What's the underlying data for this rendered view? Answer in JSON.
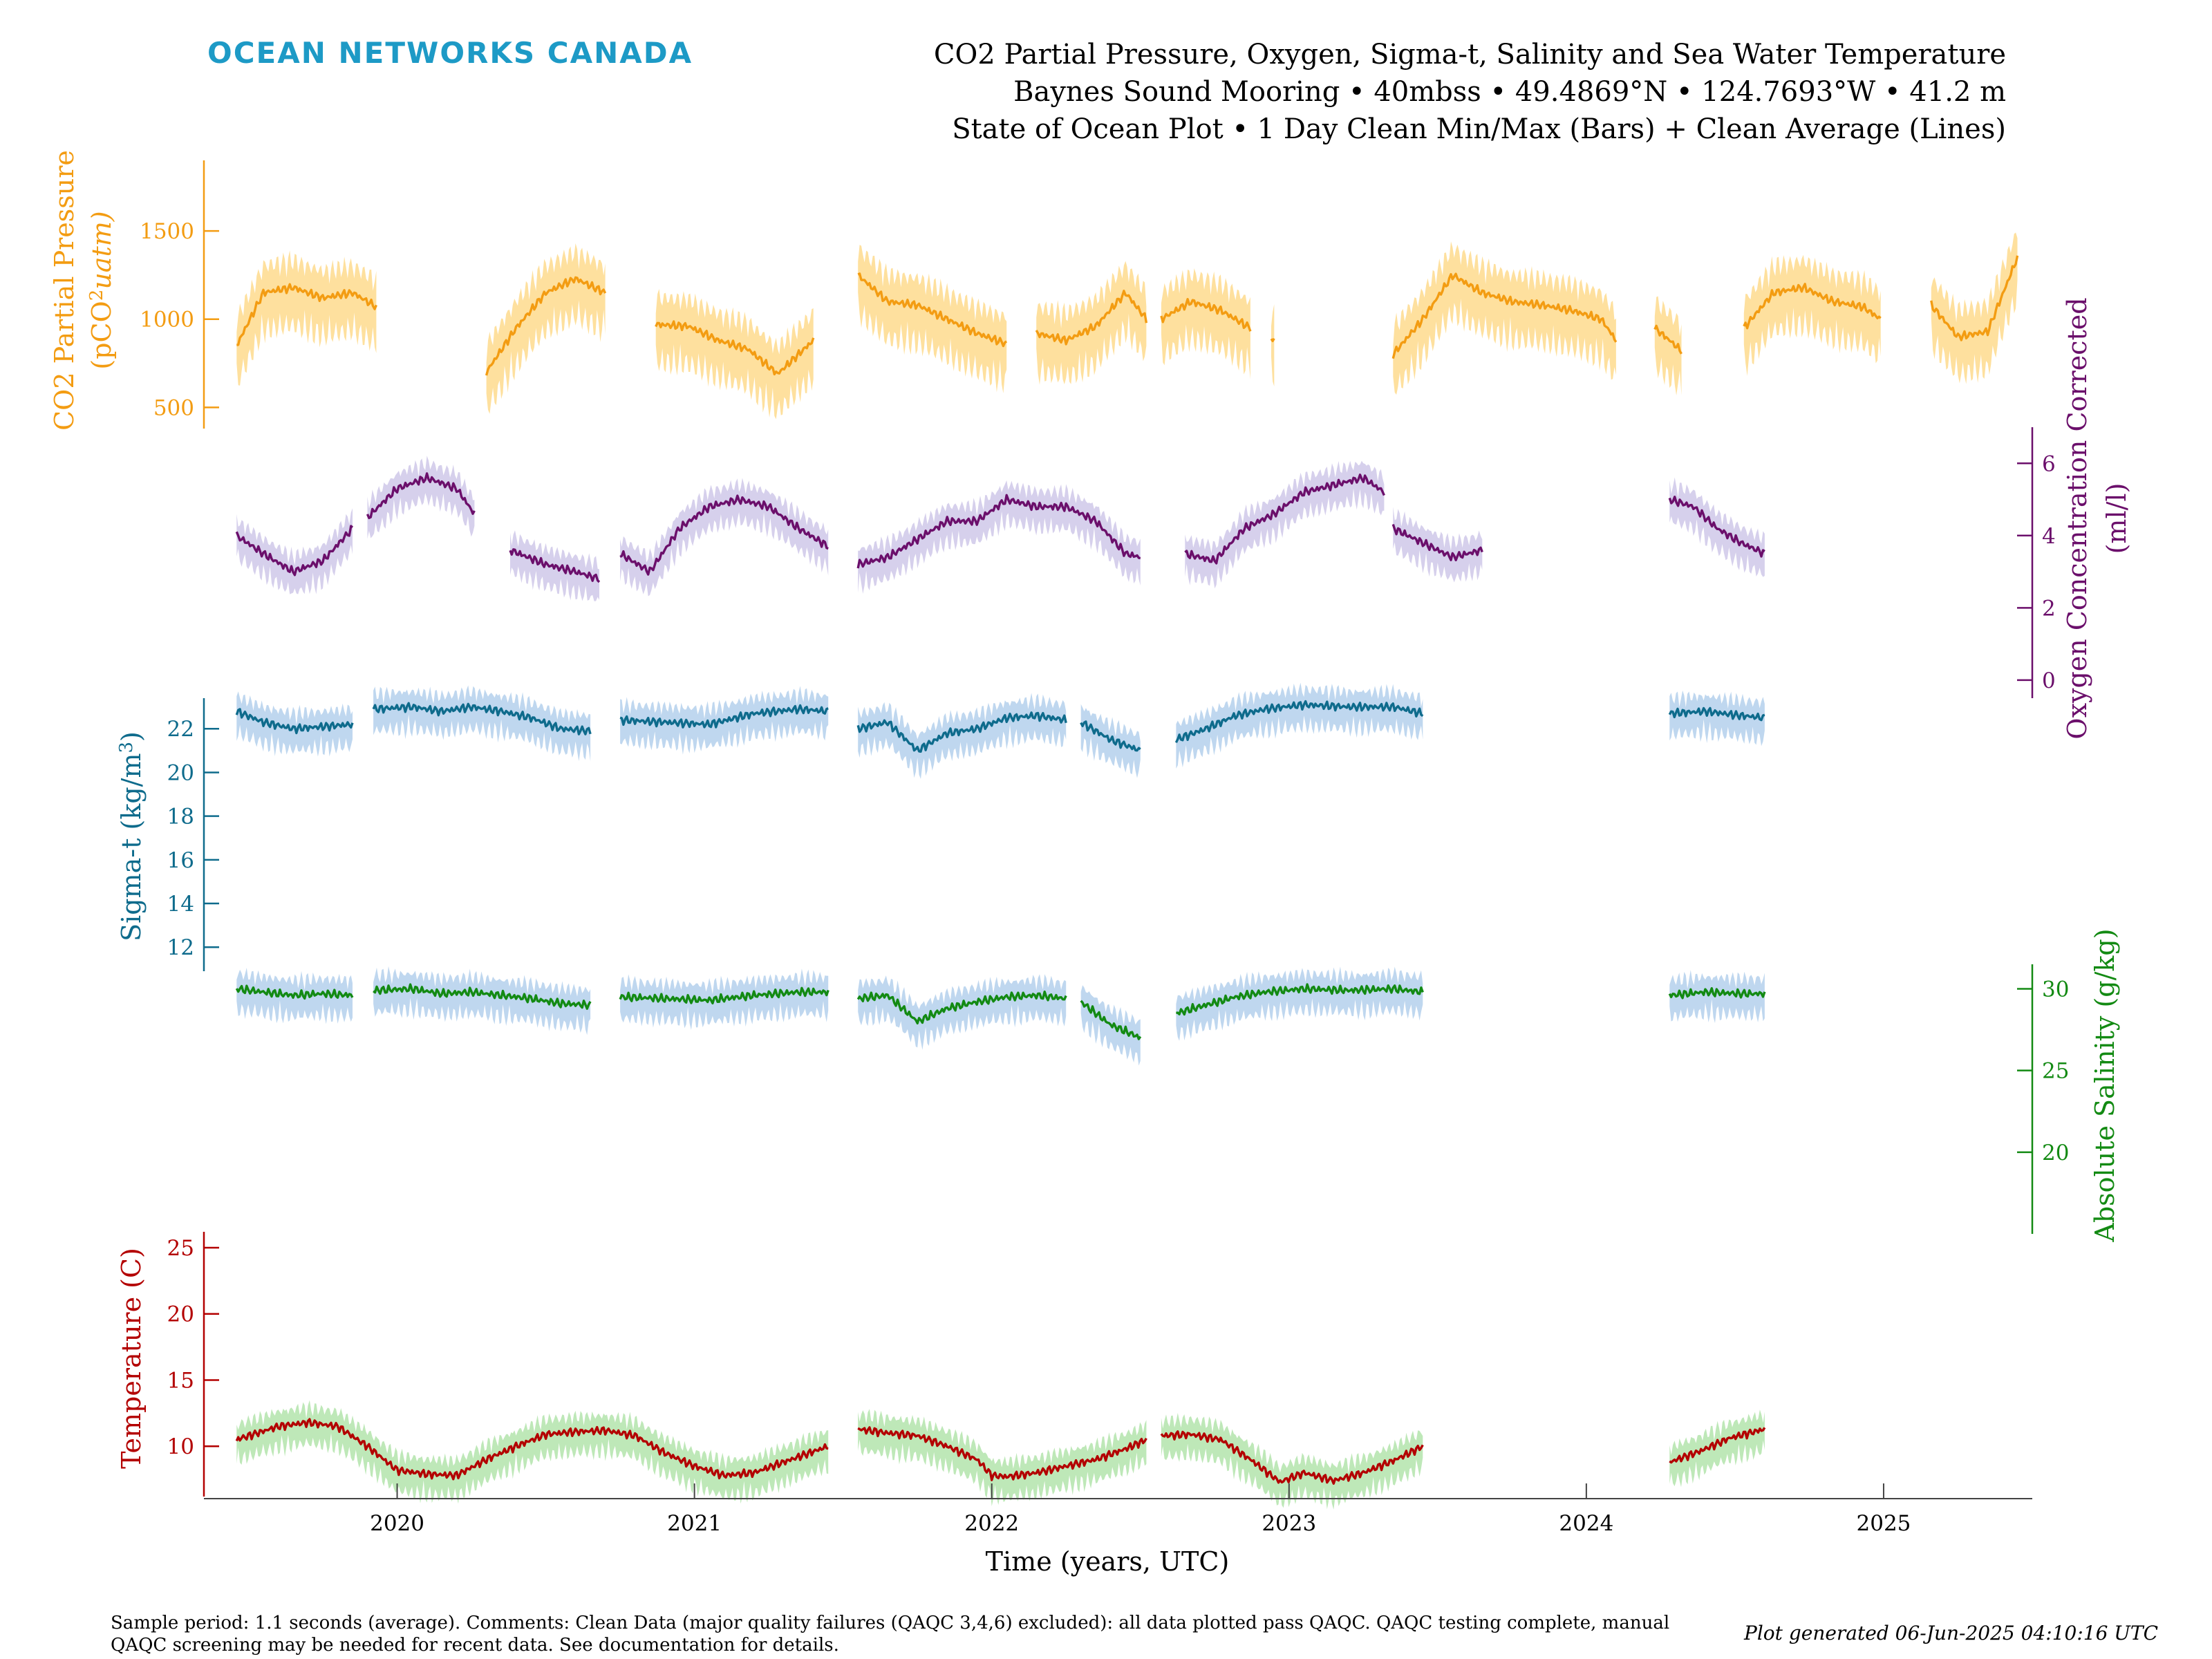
{
  "header": {
    "logo": "OCEAN NETWORKS CANADA",
    "title_line1": "CO2 Partial Pressure, Oxygen, Sigma-t, Salinity and Sea Water Temperature",
    "title_line2": "Baynes Sound Mooring • 40mbss • 49.4869°N • 124.7693°W • 41.2 m",
    "title_line3": "State of Ocean Plot • 1 Day Clean Min/Max (Bars) + Clean Average (Lines)"
  },
  "footer": {
    "comments": "Sample period: 1.1 seconds (average). Comments: Clean Data (major quality failures (QAQC 3,4,6) excluded): all data plotted pass QAQC. QAQC testing complete, manual QAQC screening may be needed for recent data. See documentation for details.",
    "generated": "Plot generated 06-Jun-2025 04:10:16 UTC"
  },
  "colors": {
    "co2": "#f39c12",
    "co2_band": "#fdd57e",
    "oxygen": "#6b0f6b",
    "oxygen_band": "#c8c0e6",
    "sigma": "#0e6b8c",
    "sigma_band": "#a9c9ea",
    "salinity": "#138a13",
    "salinity_band": "#a9c9ea",
    "temperature": "#b30000",
    "temperature_band": "#a8e0a0"
  },
  "chart_data": {
    "type": "line",
    "xlabel": "Time (years, UTC)",
    "x_range": [
      2019.35,
      2025.5
    ],
    "x_ticks": [
      "2020",
      "2021",
      "2022",
      "2023",
      "2024",
      "2025"
    ],
    "series": [
      {
        "key": "co2",
        "ylabel_line1": "CO2 Partial Pressure",
        "ylabel_line2_pre": "(pCO",
        "ylabel_sup": "2",
        "ylabel_line2_post": "uatm)",
        "side": "left",
        "y_range": [
          380,
          1900
        ],
        "y_ticks": [
          "500",
          "1000",
          "1500"
        ],
        "segments": [
          {
            "x": [
              2019.46,
              2019.55,
              2019.65,
              2019.75,
              2019.85,
              2019.93
            ],
            "y": [
              850,
              1150,
              1180,
              1120,
              1150,
              1070
            ]
          },
          {
            "x": [
              2020.3,
              2020.4,
              2020.5,
              2020.6,
              2020.7
            ],
            "y": [
              700,
              950,
              1150,
              1230,
              1150
            ]
          },
          {
            "x": [
              2020.87,
              2020.98,
              2021.08,
              2021.18,
              2021.28,
              2021.4
            ],
            "y": [
              970,
              960,
              880,
              830,
              690,
              880
            ]
          },
          {
            "x": [
              2021.55,
              2021.65,
              2021.75,
              2021.85,
              2021.95,
              2022.05
            ],
            "y": [
              1250,
              1100,
              1080,
              1000,
              920,
              860
            ]
          },
          {
            "x": [
              2022.15,
              2022.25,
              2022.35,
              2022.45,
              2022.52
            ],
            "y": [
              920,
              880,
              960,
              1150,
              1000
            ]
          },
          {
            "x": [
              2022.57,
              2022.67,
              2022.77,
              2022.87
            ],
            "y": [
              1000,
              1100,
              1050,
              950
            ]
          },
          {
            "x": [
              2022.94,
              2022.95
            ],
            "y": [
              900,
              880
            ]
          },
          {
            "x": [
              2023.35,
              2023.45,
              2023.55,
              2023.65,
              2023.75,
              2023.85,
              2023.95,
              2024.05,
              2024.1
            ],
            "y": [
              800,
              1000,
              1250,
              1150,
              1100,
              1080,
              1050,
              1000,
              880
            ]
          },
          {
            "x": [
              2024.23,
              2024.28,
              2024.32
            ],
            "y": [
              950,
              880,
              820
            ]
          },
          {
            "x": [
              2024.53,
              2024.63,
              2024.73,
              2024.83,
              2024.93,
              2024.99
            ],
            "y": [
              950,
              1150,
              1180,
              1100,
              1070,
              1000
            ]
          },
          {
            "x": [
              2025.16,
              2025.25,
              2025.35,
              2025.45
            ],
            "y": [
              1080,
              900,
              930,
              1350
            ]
          }
        ]
      },
      {
        "key": "oxygen",
        "ylabel_line1": "Oxygen Concentration Corrected",
        "ylabel_line2": "(ml/l)",
        "side": "right",
        "y_range": [
          -0.5,
          7.0
        ],
        "y_ticks": [
          "0",
          "2",
          "4",
          "6"
        ],
        "segments": [
          {
            "x": [
              2019.46,
              2019.55,
              2019.65,
              2019.75,
              2019.85
            ],
            "y": [
              4.0,
              3.5,
              3.0,
              3.3,
              4.2
            ]
          },
          {
            "x": [
              2019.9,
              2020.0,
              2020.1,
              2020.2,
              2020.26
            ],
            "y": [
              4.5,
              5.3,
              5.6,
              5.3,
              4.6
            ]
          },
          {
            "x": [
              2020.38,
              2020.5,
              2020.6,
              2020.68
            ],
            "y": [
              3.6,
              3.2,
              3.0,
              2.8
            ]
          },
          {
            "x": [
              2020.75,
              2020.85,
              2020.95,
              2021.05,
              2021.15,
              2021.25,
              2021.35,
              2021.45
            ],
            "y": [
              3.5,
              3.0,
              4.2,
              4.8,
              5.0,
              4.8,
              4.2,
              3.7
            ]
          },
          {
            "x": [
              2021.55,
              2021.65,
              2021.75,
              2021.85,
              2021.95,
              2022.05,
              2022.15,
              2022.25,
              2022.35,
              2022.45,
              2022.5
            ],
            "y": [
              3.2,
              3.4,
              3.9,
              4.4,
              4.4,
              5.0,
              4.8,
              4.8,
              4.4,
              3.5,
              3.4
            ]
          },
          {
            "x": [
              2022.65,
              2022.75,
              2022.85,
              2022.95,
              2023.05,
              2023.15,
              2023.25,
              2023.32
            ],
            "y": [
              3.5,
              3.3,
              4.2,
              4.6,
              5.2,
              5.4,
              5.6,
              5.2
            ]
          },
          {
            "x": [
              2023.35,
              2023.45,
              2023.55,
              2023.65
            ],
            "y": [
              4.2,
              3.8,
              3.4,
              3.6
            ]
          },
          {
            "x": [
              2024.28,
              2024.36,
              2024.44,
              2024.52,
              2024.6
            ],
            "y": [
              5.0,
              4.8,
              4.2,
              3.8,
              3.5
            ]
          }
        ]
      },
      {
        "key": "sigma",
        "ylabel_line1_pre": "Sigma-t (kg/m",
        "ylabel_sup": "3",
        "ylabel_line1_post": ")",
        "side": "left",
        "y_range": [
          10.9,
          23.4
        ],
        "y_ticks": [
          "12",
          "14",
          "16",
          "18",
          "20",
          "22"
        ],
        "segments": [
          {
            "x": [
              2019.46,
              2019.55,
              2019.65,
              2019.75,
              2019.85
            ],
            "y": [
              22.8,
              22.3,
              22.0,
              22.1,
              22.2
            ]
          },
          {
            "x": [
              2019.92,
              2020.05,
              2020.15,
              2020.25,
              2020.35,
              2020.45,
              2020.55,
              2020.65
            ],
            "y": [
              22.9,
              23.0,
              22.8,
              23.0,
              22.8,
              22.5,
              22.0,
              21.9
            ]
          },
          {
            "x": [
              2020.75,
              2020.9,
              2021.05,
              2021.2,
              2021.35,
              2021.45
            ],
            "y": [
              22.4,
              22.3,
              22.2,
              22.7,
              22.9,
              22.8
            ]
          },
          {
            "x": [
              2021.55,
              2021.65,
              2021.75,
              2021.85,
              2021.95,
              2022.05,
              2022.15,
              2022.25
            ],
            "y": [
              22.0,
              22.3,
              21.0,
              21.8,
              22.0,
              22.5,
              22.6,
              22.4
            ]
          },
          {
            "x": [
              2022.3,
              2022.4,
              2022.5
            ],
            "y": [
              22.3,
              21.5,
              21.0
            ]
          },
          {
            "x": [
              2022.62,
              2022.72,
              2022.82,
              2022.92,
              2023.05,
              2023.2,
              2023.35,
              2023.45
            ],
            "y": [
              21.5,
              22.0,
              22.6,
              22.9,
              23.1,
              23.0,
              23.0,
              22.7
            ]
          },
          {
            "x": [
              2024.28,
              2024.4,
              2024.52,
              2024.6
            ],
            "y": [
              22.7,
              22.8,
              22.6,
              22.5
            ]
          }
        ]
      },
      {
        "key": "salinity",
        "ylabel_line1": "Absolute Salinity (g/kg)",
        "side": "right",
        "y_range": [
          15,
          31.5
        ],
        "y_ticks": [
          "20",
          "25",
          "30"
        ],
        "segments": [
          {
            "x": [
              2019.46,
              2019.55,
              2019.65,
              2019.75,
              2019.85
            ],
            "y": [
              30.0,
              29.8,
              29.6,
              29.7,
              29.6
            ]
          },
          {
            "x": [
              2019.92,
              2020.05,
              2020.15,
              2020.25,
              2020.35,
              2020.45,
              2020.55,
              2020.65
            ],
            "y": [
              29.9,
              30.0,
              29.7,
              29.8,
              29.6,
              29.4,
              29.1,
              29.0
            ]
          },
          {
            "x": [
              2020.75,
              2020.9,
              2021.05,
              2021.2,
              2021.35,
              2021.45
            ],
            "y": [
              29.5,
              29.4,
              29.3,
              29.6,
              29.8,
              29.8
            ]
          },
          {
            "x": [
              2021.55,
              2021.65,
              2021.75,
              2021.85,
              2021.95,
              2022.05,
              2022.15,
              2022.25
            ],
            "y": [
              29.4,
              29.6,
              28.0,
              28.8,
              29.2,
              29.5,
              29.6,
              29.4
            ]
          },
          {
            "x": [
              2022.3,
              2022.4,
              2022.5
            ],
            "y": [
              29.2,
              27.8,
              27.0
            ]
          },
          {
            "x": [
              2022.62,
              2022.72,
              2022.82,
              2022.92,
              2023.05,
              2023.2,
              2023.35,
              2023.45
            ],
            "y": [
              28.5,
              29.0,
              29.5,
              29.8,
              30.0,
              29.9,
              30.0,
              29.8
            ]
          },
          {
            "x": [
              2024.28,
              2024.4,
              2024.52,
              2024.6
            ],
            "y": [
              29.6,
              29.8,
              29.7,
              29.7
            ]
          }
        ]
      },
      {
        "key": "temperature",
        "ylabel_line1": "Temperature (C)",
        "side": "left",
        "y_range": [
          6.2,
          26.2
        ],
        "y_ticks": [
          "10",
          "15",
          "20",
          "25"
        ],
        "segments": [
          {
            "x": [
              2019.46,
              2019.6,
              2019.7,
              2019.8,
              2019.9,
              2020.0,
              2020.1,
              2020.2,
              2020.3,
              2020.4,
              2020.5,
              2020.6,
              2020.7,
              2020.8,
              2020.9,
              2021.0,
              2021.1,
              2021.2,
              2021.3,
              2021.45
            ],
            "y": [
              10.5,
              11.5,
              11.8,
              11.5,
              10.0,
              8.2,
              7.9,
              7.8,
              9.0,
              10.0,
              10.9,
              11.1,
              11.2,
              10.8,
              9.5,
              8.5,
              7.8,
              8.0,
              8.8,
              10.0
            ]
          },
          {
            "x": [
              2021.55,
              2021.65,
              2021.75,
              2021.85,
              2021.95,
              2022.0,
              2022.05,
              2022.15,
              2022.25,
              2022.35,
              2022.45,
              2022.52
            ],
            "y": [
              11.3,
              11.0,
              10.8,
              10.0,
              9.0,
              7.8,
              7.7,
              8.0,
              8.5,
              9.0,
              9.8,
              10.5
            ]
          },
          {
            "x": [
              2022.57,
              2022.67,
              2022.77,
              2022.87,
              2022.97,
              2023.05,
              2023.15,
              2023.25,
              2023.35,
              2023.45
            ],
            "y": [
              10.8,
              10.9,
              10.5,
              9.0,
              7.3,
              8.0,
              7.4,
              8.0,
              8.9,
              10.0
            ]
          },
          {
            "x": [
              2024.28,
              2024.38,
              2024.48,
              2024.6
            ],
            "y": [
              8.8,
              9.6,
              10.6,
              11.3
            ]
          }
        ]
      }
    ]
  }
}
